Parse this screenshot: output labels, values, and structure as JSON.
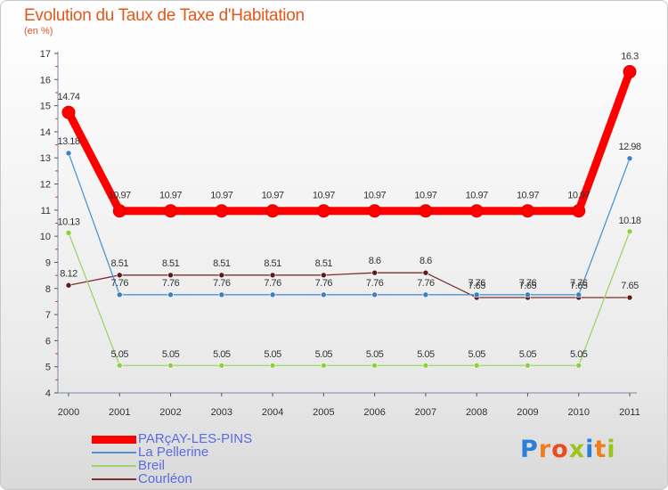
{
  "header": {
    "title": "Evolution du Taux de Taxe d'Habitation",
    "subtitle": "(en %)"
  },
  "logo": {
    "text": "Proxiti",
    "letters": [
      {
        "ch": "P",
        "color": "#2c7fd6"
      },
      {
        "ch": "r",
        "color": "#ee7d1a"
      },
      {
        "ch": "o",
        "color": "#e84c22"
      },
      {
        "ch": "x",
        "color": "#9bc31c"
      },
      {
        "ch": "i",
        "color": "#2c7fd6"
      },
      {
        "ch": "t",
        "color": "#ee7d1a"
      },
      {
        "ch": "i",
        "color": "#9bc31c"
      }
    ]
  },
  "chart_data": {
    "type": "line",
    "title": "Evolution du Taux de Taxe d'Habitation",
    "subtitle": "(en %)",
    "xlabel": "",
    "ylabel": "",
    "x": [
      "2000",
      "2001",
      "2002",
      "2003",
      "2004",
      "2005",
      "2006",
      "2007",
      "2008",
      "2009",
      "2010",
      "2011"
    ],
    "ylim": [
      4,
      17
    ],
    "yticks": [
      4,
      5,
      6,
      7,
      8,
      9,
      10,
      11,
      12,
      13,
      14,
      15,
      16,
      17
    ],
    "grid": false,
    "legend_position": "bottom-left",
    "series": [
      {
        "name": "PARçAY-LES-PINS",
        "color": "#ff0000",
        "thick": true,
        "values": [
          14.74,
          10.97,
          10.97,
          10.97,
          10.97,
          10.97,
          10.97,
          10.97,
          10.97,
          10.97,
          10.97,
          16.3
        ],
        "labels": [
          "14.74",
          "10.97",
          "10.97",
          "10.97",
          "10.97",
          "10.97",
          "10.97",
          "10.97",
          "10.97",
          "10.97",
          "10.97",
          "16.3"
        ]
      },
      {
        "name": "La Pellerine",
        "color": "#4f94cd",
        "marker": "#3b7fc4",
        "values": [
          13.18,
          7.76,
          7.76,
          7.76,
          7.76,
          7.76,
          7.76,
          7.76,
          7.76,
          7.76,
          7.76,
          12.98
        ],
        "labels": [
          "13.18",
          "7.76",
          "7.76",
          "7.76",
          "7.76",
          "7.76",
          "7.76",
          "7.76",
          "7.76",
          "7.76",
          "7.76",
          "12.98"
        ]
      },
      {
        "name": "Breil",
        "color": "#9ed36a",
        "marker": "#8cd03a",
        "values": [
          10.13,
          5.05,
          5.05,
          5.05,
          5.05,
          5.05,
          5.05,
          5.05,
          5.05,
          5.05,
          5.05,
          10.18
        ],
        "labels": [
          "10.13",
          "5.05",
          "5.05",
          "5.05",
          "5.05",
          "5.05",
          "5.05",
          "5.05",
          "5.05",
          "5.05",
          "5.05",
          "10.18"
        ]
      },
      {
        "name": "Courléon",
        "color": "#7b2f2f",
        "marker": "#5c1a1a",
        "values": [
          8.12,
          8.51,
          8.51,
          8.51,
          8.51,
          8.51,
          8.6,
          8.6,
          7.65,
          7.65,
          7.65,
          7.65
        ],
        "labels": [
          "8.12",
          "8.51",
          "8.51",
          "8.51",
          "8.51",
          "8.51",
          "8.6",
          "8.6",
          "7.65",
          "7.65",
          "7.65",
          "7.65"
        ]
      }
    ]
  }
}
